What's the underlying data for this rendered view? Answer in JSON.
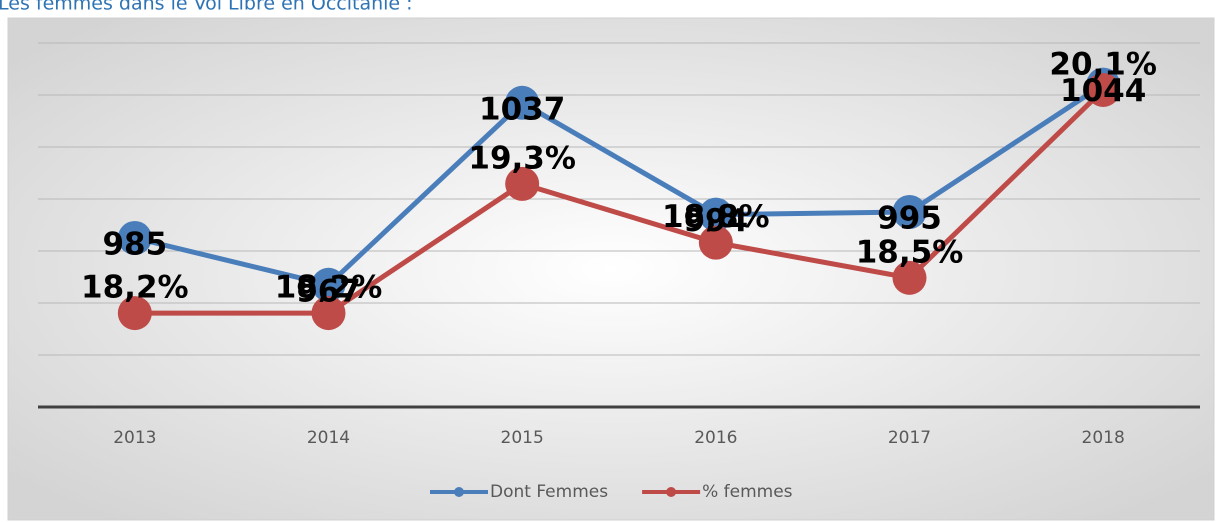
{
  "chart_data": {
    "type": "line",
    "title": "Les femmes dans le Vol Libre en Occitanie :",
    "categories": [
      "2013",
      "2014",
      "2015",
      "2016",
      "2017",
      "2018"
    ],
    "series": [
      {
        "name": "Dont Femmes",
        "color": "#4a7ebb",
        "values": [
          985,
          967,
          1037,
          994,
          995,
          1044
        ]
      },
      {
        "name": "% femmes",
        "color": "#be4b48",
        "axis": "y2",
        "values": [
          18.2,
          18.2,
          19.3,
          18.8,
          18.5,
          20.1
        ],
        "value_labels": [
          "18,2%",
          "18,2%",
          "19,3%",
          "18,8%",
          "18,5%",
          "20,1%"
        ]
      }
    ],
    "ylim": [
      920,
      1060
    ],
    "yticks": [
      920,
      940,
      960,
      980,
      1000,
      1020,
      1040,
      1060
    ],
    "y2lim": [
      17.4,
      20.5
    ],
    "grid": true,
    "legend": "bottom"
  }
}
